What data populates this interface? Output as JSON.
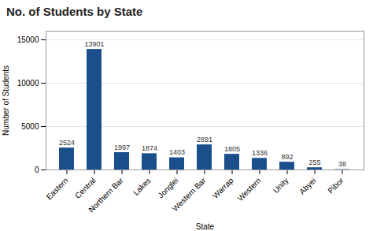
{
  "chart_data": {
    "type": "bar",
    "title": "No. of Students by State",
    "xlabel": "State",
    "ylabel": "Number of Students",
    "categories": [
      "Eastern",
      "Central",
      "Northern Bar",
      "Lakes",
      "Jonglei",
      "Western Bar",
      "Warrap",
      "Western",
      "Unity",
      "Abyei",
      "Pibor"
    ],
    "values": [
      2524,
      13901,
      1997,
      1874,
      1403,
      2891,
      1805,
      1336,
      892,
      255,
      38
    ],
    "color": "#1B4F8C",
    "ylim": [
      0,
      16000
    ],
    "yticks": [
      0,
      5000,
      10000,
      15000
    ],
    "grid": true,
    "data_labels": true
  }
}
